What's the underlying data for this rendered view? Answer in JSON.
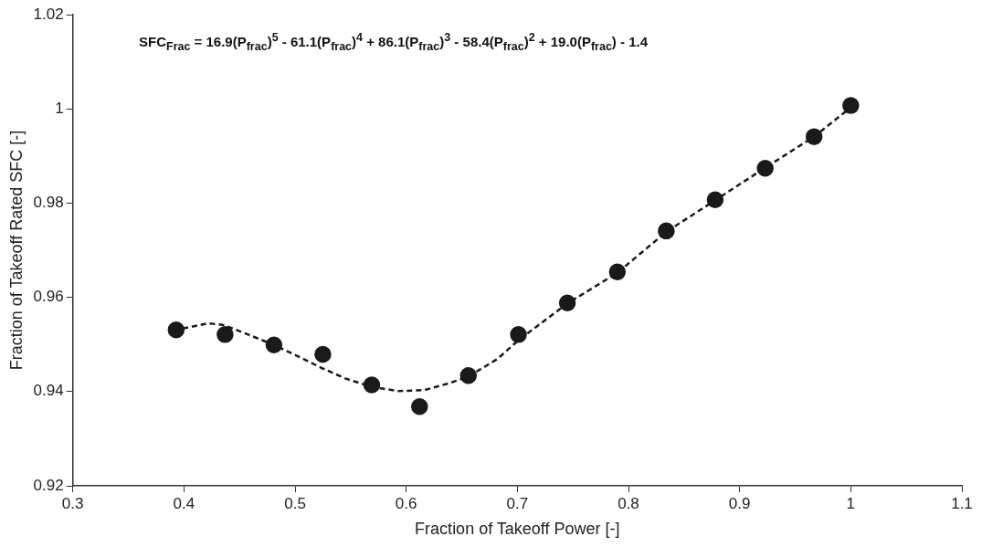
{
  "chart_data": {
    "type": "scatter",
    "xlabel": "Fraction of Takeoff Power [-]",
    "ylabel": "Fraction of Takeoff Rated SFC [-]",
    "annotations": [
      "SFC$_{Frac}$ = 16.9(P$_{frac}$)$^{5}$ - 61.1(P$_{frac}$)$^{4}$ + 86.1(P$_{frac}$)$^{3}$ - 58.4(P$_{frac}$)$^{2}$ + 19.0(P$_{frac}$) - 1.4"
    ],
    "series": [
      {
        "type": "scatter",
        "color": "#1a1a1a",
        "marker": "circle",
        "x": [
          0.393,
          0.437,
          0.481,
          0.525,
          0.569,
          0.612,
          0.656,
          0.701,
          0.745,
          0.79,
          0.834,
          0.878,
          0.923,
          0.967,
          1.0
        ],
        "values": [
          0.9531,
          0.9521,
          0.9499,
          0.9479,
          0.9414,
          0.9368,
          0.9434,
          0.9521,
          0.9588,
          0.9654,
          0.9741,
          0.9807,
          0.9874,
          0.9941,
          1.0007
        ]
      },
      {
        "type": "line",
        "color": "#1a1a1a",
        "marker": "none",
        "line_style": "dashed",
        "x": [
          0.399,
          0.422,
          0.436,
          0.459,
          0.481,
          0.505,
          0.525,
          0.545,
          0.569,
          0.593,
          0.616,
          0.639,
          0.656,
          0.682,
          0.701,
          0.745,
          0.79,
          0.834,
          0.878,
          0.923,
          0.967,
          0.999
        ],
        "values": [
          0.9534,
          0.9545,
          0.9541,
          0.952,
          0.9499,
          0.9472,
          0.9449,
          0.9428,
          0.941,
          0.9401,
          0.9403,
          0.9418,
          0.9432,
          0.9469,
          0.9509,
          0.9587,
          0.9652,
          0.9739,
          0.9806,
          0.9875,
          0.9941,
          1.0001
        ]
      }
    ],
    "xlim": [
      0.3,
      1.1
    ],
    "xticks": [
      0.3,
      0.4,
      0.5,
      0.6,
      0.7,
      0.8,
      0.9,
      1,
      1.1
    ],
    "ylim": [
      0.92,
      1.02
    ],
    "yticks": [
      0.92,
      0.94,
      0.96,
      0.98,
      1,
      1.02
    ],
    "grid": false,
    "legend": false
  }
}
